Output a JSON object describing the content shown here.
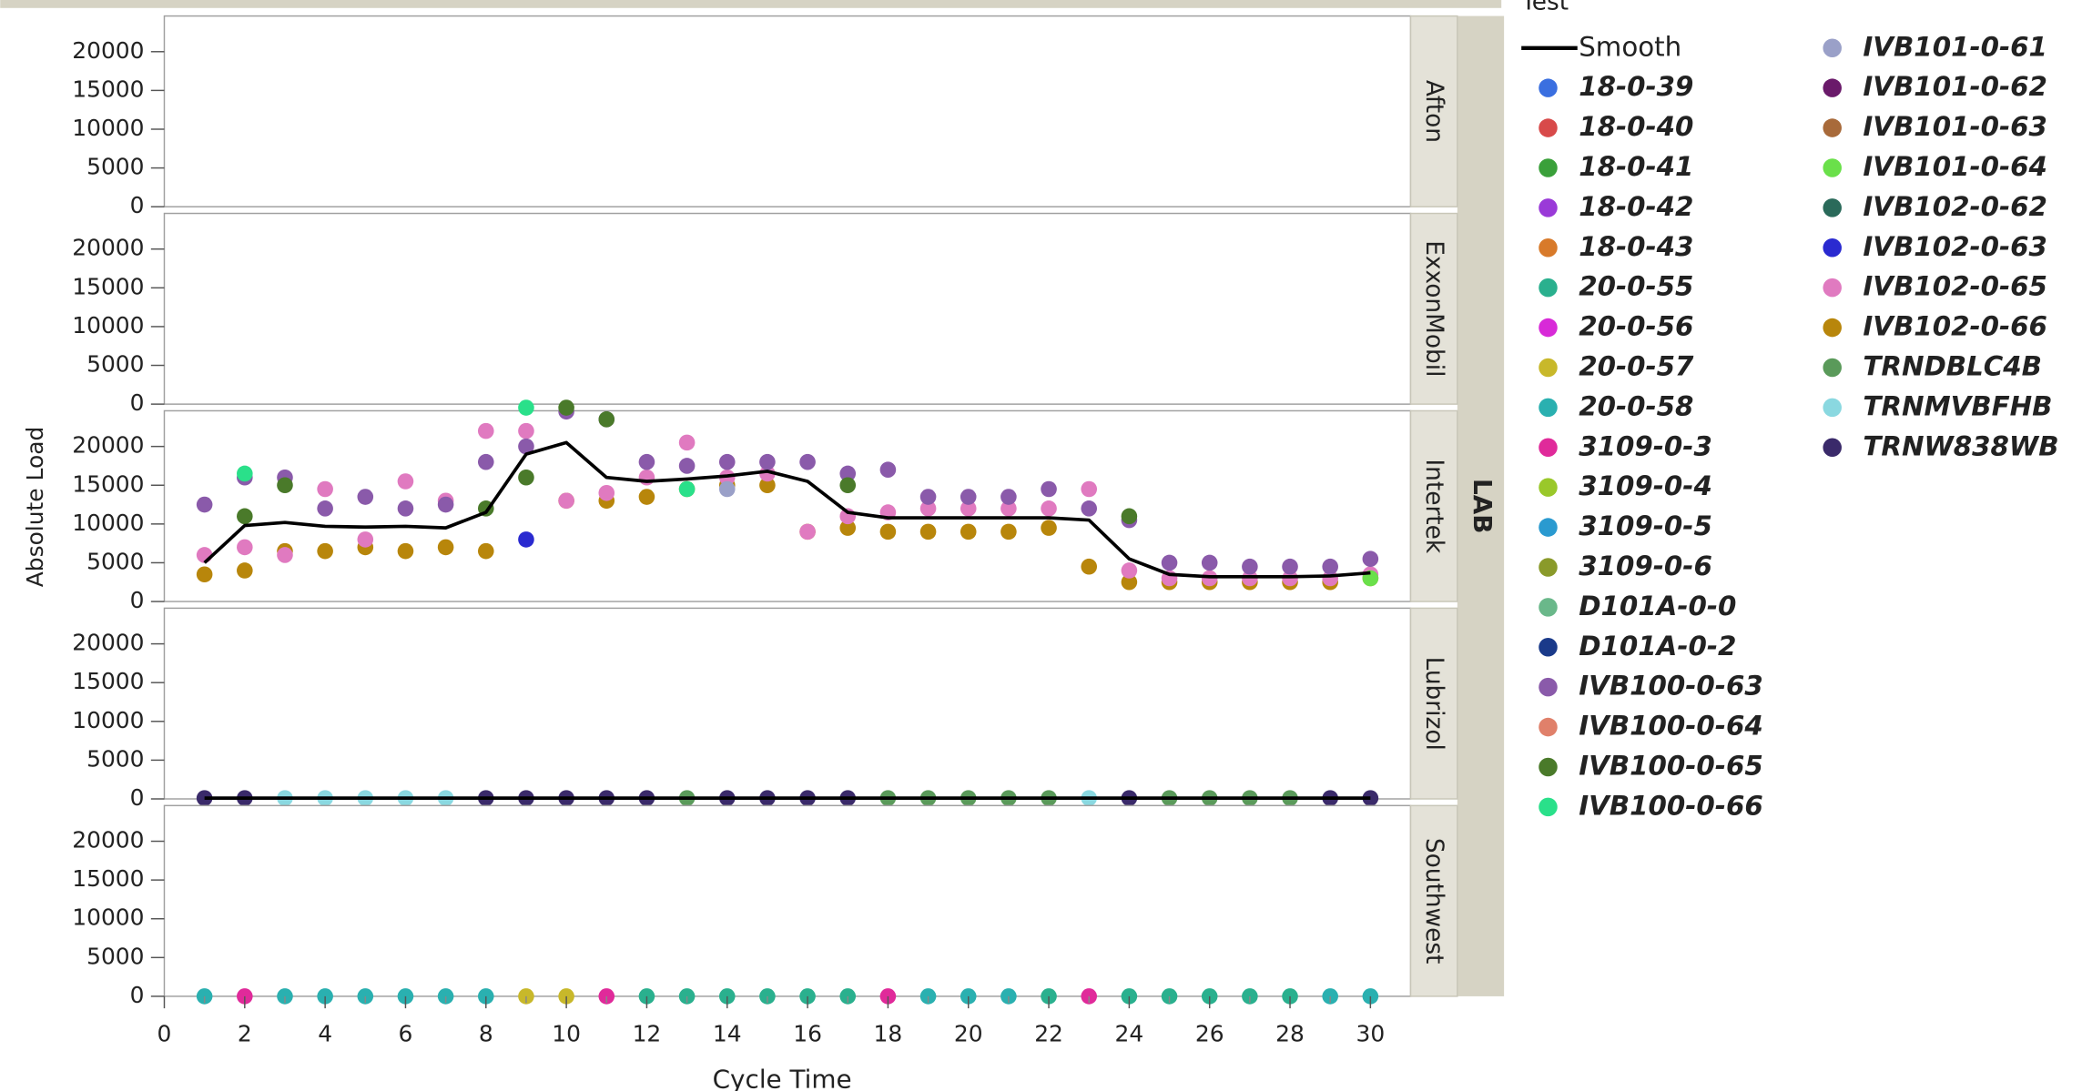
{
  "chart_data": {
    "type": "scatter",
    "legend_title": "Test",
    "smooth_label": "Smooth",
    "smooth_color": "#000000",
    "x_label": "Cycle Time",
    "y_label": "Absolute Load",
    "group_label": "LAB",
    "xlim": [
      0,
      31
    ],
    "xticks": [
      0,
      2,
      4,
      6,
      8,
      10,
      12,
      14,
      16,
      18,
      20,
      22,
      24,
      26,
      28,
      30
    ],
    "ylim": [
      0,
      24600
    ],
    "yticks": [
      0,
      5000,
      10000,
      15000,
      20000
    ],
    "legend": [
      {
        "name": "18-0-39",
        "color": "#3a6fe0"
      },
      {
        "name": "18-0-40",
        "color": "#d84a4a"
      },
      {
        "name": "18-0-41",
        "color": "#3aa03a"
      },
      {
        "name": "18-0-42",
        "color": "#9a3ad8"
      },
      {
        "name": "18-0-43",
        "color": "#d87a2a"
      },
      {
        "name": "20-0-55",
        "color": "#2ab08e"
      },
      {
        "name": "20-0-56",
        "color": "#d82ad8"
      },
      {
        "name": "20-0-57",
        "color": "#c8b82a"
      },
      {
        "name": "20-0-58",
        "color": "#2ab0b0"
      },
      {
        "name": "3109-0-3",
        "color": "#e02a9a"
      },
      {
        "name": "3109-0-4",
        "color": "#9ac82a"
      },
      {
        "name": "3109-0-5",
        "color": "#2a9ad0"
      },
      {
        "name": "3109-0-6",
        "color": "#8a9a2a"
      },
      {
        "name": "D101A-0-0",
        "color": "#6ab88a"
      },
      {
        "name": "D101A-0-2",
        "color": "#1a3a8a"
      },
      {
        "name": "IVB100-0-63",
        "color": "#8a5aaa"
      },
      {
        "name": "IVB100-0-64",
        "color": "#e0806a"
      },
      {
        "name": "IVB100-0-65",
        "color": "#4a7a2a"
      },
      {
        "name": "IVB100-0-66",
        "color": "#2ae08a"
      },
      {
        "name": "IVB101-0-61",
        "color": "#9aa0c8"
      },
      {
        "name": "IVB101-0-62",
        "color": "#6a1a6a"
      },
      {
        "name": "IVB101-0-63",
        "color": "#a86a3a"
      },
      {
        "name": "IVB101-0-64",
        "color": "#6ae04a"
      },
      {
        "name": "IVB102-0-62",
        "color": "#2a6a5a"
      },
      {
        "name": "IVB102-0-63",
        "color": "#2a2ad0"
      },
      {
        "name": "IVB102-0-65",
        "color": "#e07ac0"
      },
      {
        "name": "IVB102-0-66",
        "color": "#b8860b"
      },
      {
        "name": "TRNDBLC4B",
        "color": "#5a9a5a"
      },
      {
        "name": "TRNMVBFHB",
        "color": "#8ad8e0"
      },
      {
        "name": "TRNW838WB",
        "color": "#3a2a6a"
      }
    ],
    "panels": [
      {
        "name": "Afton",
        "series": []
      },
      {
        "name": "ExxonMobil",
        "series": []
      },
      {
        "name": "Intertek",
        "series": [
          {
            "name": "IVB102-0-66",
            "color": "#b8860b",
            "x": [
              1,
              2,
              3,
              4,
              5,
              6,
              7,
              8,
              10,
              11,
              12,
              13,
              14,
              15,
              16,
              17,
              18,
              19,
              20,
              21,
              22,
              23,
              24,
              25,
              26,
              27,
              28,
              29,
              30
            ],
            "values": [
              3500,
              4000,
              6500,
              6500,
              7000,
              6500,
              7000,
              6500,
              13000,
              13000,
              13500,
              14500,
              15000,
              15000,
              9000,
              9500,
              9000,
              9000,
              9000,
              9000,
              9500,
              4500,
              2500,
              2500,
              2500,
              2500,
              2500,
              2500,
              3000
            ]
          },
          {
            "name": "IVB102-0-63",
            "color": "#2a2ad0",
            "x": [
              9
            ],
            "values": [
              8000
            ]
          },
          {
            "name": "IVB102-0-65",
            "color": "#e07ac0",
            "x": [
              1,
              2,
              3,
              4,
              5,
              6,
              7,
              8,
              9,
              10,
              11,
              12,
              13,
              14,
              15,
              16,
              17,
              18,
              19,
              20,
              21,
              22,
              23,
              24,
              25,
              26,
              27,
              28,
              29,
              30
            ],
            "values": [
              6000,
              7000,
              6000,
              14500,
              8000,
              15500,
              13000,
              22000,
              22000,
              13000,
              14000,
              16000,
              20500,
              16000,
              16500,
              9000,
              11000,
              11500,
              12000,
              12000,
              12000,
              12000,
              14500,
              4000,
              3000,
              3000,
              3000,
              3000,
              3000,
              3500
            ]
          },
          {
            "name": "IVB100-0-63",
            "color": "#8a5aaa",
            "x": [
              1,
              2,
              3,
              4,
              5,
              6,
              7,
              8,
              9,
              10,
              11,
              12,
              13,
              14,
              15,
              16,
              17,
              18,
              19,
              20,
              21,
              22,
              23,
              24,
              25,
              26,
              27,
              28,
              29,
              30
            ],
            "values": [
              12500,
              16000,
              16000,
              12000,
              13500,
              12000,
              12500,
              18000,
              20000,
              24500,
              23500,
              18000,
              17500,
              18000,
              18000,
              18000,
              16500,
              17000,
              13500,
              13500,
              13500,
              14500,
              12000,
              10500,
              5000,
              5000,
              4500,
              4500,
              4500,
              5500
            ]
          },
          {
            "name": "IVB100-0-65",
            "color": "#4a7a2a",
            "x": [
              2,
              3,
              8,
              9,
              10,
              11,
              17,
              24
            ],
            "values": [
              11000,
              15000,
              12000,
              16000,
              25000,
              23500,
              15000,
              11000
            ]
          },
          {
            "name": "IVB100-0-66",
            "color": "#2ae08a",
            "x": [
              2,
              9,
              13
            ],
            "values": [
              16500,
              25000,
              14500
            ]
          },
          {
            "name": "IVB101-0-61",
            "color": "#9aa0c8",
            "x": [
              14
            ],
            "values": [
              14500
            ]
          },
          {
            "name": "IVB101-0-64",
            "color": "#6ae04a",
            "x": [
              30
            ],
            "values": [
              3000
            ]
          }
        ],
        "smooth": {
          "x": [
            1,
            2,
            3,
            4,
            5,
            6,
            7,
            8,
            9,
            10,
            11,
            12,
            13,
            14,
            15,
            16,
            17,
            18,
            19,
            20,
            21,
            22,
            23,
            24,
            25,
            26,
            27,
            28,
            29,
            30
          ],
          "values": [
            5000,
            9800,
            10200,
            9700,
            9600,
            9700,
            9500,
            11500,
            19000,
            20500,
            16000,
            15500,
            15800,
            16200,
            16800,
            15500,
            11500,
            10800,
            10800,
            10800,
            10800,
            10800,
            10500,
            5500,
            3500,
            3200,
            3200,
            3200,
            3300,
            3700
          ]
        }
      },
      {
        "name": "Lubrizol",
        "series": [
          {
            "name": "TRNW838WB",
            "color": "#3a2a6a",
            "x": [
              1,
              2,
              8,
              9,
              10,
              11,
              12,
              14,
              15,
              16,
              17,
              24,
              29,
              30
            ],
            "values": [
              100,
              100,
              100,
              100,
              100,
              100,
              100,
              100,
              100,
              100,
              100,
              100,
              100,
              100
            ]
          },
          {
            "name": "TRNMVBFHB",
            "color": "#8ad8e0",
            "x": [
              3,
              4,
              5,
              6,
              7,
              23
            ],
            "values": [
              100,
              100,
              100,
              100,
              100,
              100
            ]
          },
          {
            "name": "TRNDBLC4B",
            "color": "#5a9a5a",
            "x": [
              13,
              18,
              19,
              20,
              21,
              22,
              25,
              26,
              27,
              28
            ],
            "values": [
              100,
              100,
              100,
              100,
              100,
              100,
              100,
              100,
              100,
              100
            ]
          }
        ],
        "smooth": {
          "x": [
            1,
            2,
            3,
            4,
            5,
            6,
            7,
            8,
            9,
            10,
            11,
            12,
            13,
            14,
            15,
            16,
            17,
            18,
            19,
            20,
            21,
            22,
            23,
            24,
            25,
            26,
            27,
            28,
            29,
            30
          ],
          "values": [
            100,
            100,
            100,
            100,
            100,
            100,
            100,
            100,
            100,
            100,
            100,
            100,
            100,
            100,
            100,
            100,
            100,
            100,
            100,
            100,
            100,
            100,
            100,
            100,
            100,
            100,
            100,
            100,
            100,
            100
          ]
        }
      },
      {
        "name": "Southwest",
        "series": [
          {
            "name": "3109-0-3",
            "color": "#e02a9a",
            "x": [
              2,
              11,
              18,
              23
            ],
            "values": [
              0,
              0,
              0,
              0
            ]
          },
          {
            "name": "20-0-57",
            "color": "#c8b82a",
            "x": [
              9,
              10
            ],
            "values": [
              0,
              0
            ]
          },
          {
            "name": "20-0-58",
            "color": "#2ab0b0",
            "x": [
              1,
              3,
              4,
              5,
              6,
              7,
              8,
              19,
              20,
              21,
              29,
              30
            ],
            "values": [
              0,
              0,
              0,
              0,
              0,
              0,
              0,
              0,
              0,
              0,
              0,
              0
            ]
          },
          {
            "name": "20-0-55",
            "color": "#2ab08e",
            "x": [
              12,
              13,
              14,
              15,
              16,
              17,
              22,
              24,
              25,
              26,
              27,
              28
            ],
            "values": [
              0,
              0,
              0,
              0,
              0,
              0,
              0,
              0,
              0,
              0,
              0,
              0
            ]
          }
        ]
      }
    ]
  }
}
